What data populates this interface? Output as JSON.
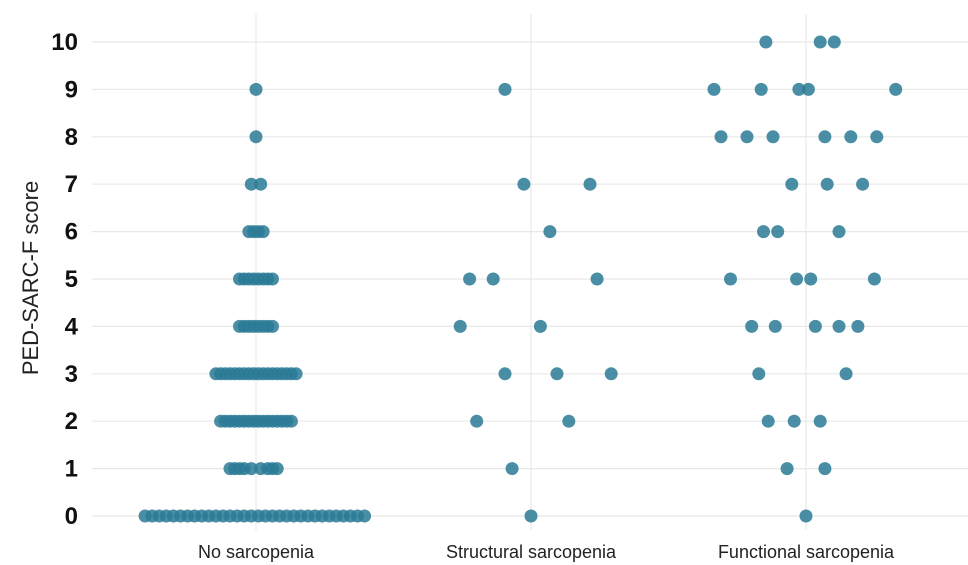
{
  "chart_data": {
    "type": "scatter",
    "subtype": "jittered-dot-plot",
    "title": "",
    "xlabel": "",
    "ylabel": "PED-SARC-F score",
    "categories": [
      "No sarcopenia",
      "Structural sarcopenia",
      "Functional sarcopenia"
    ],
    "yticks": [
      0,
      1,
      2,
      3,
      4,
      5,
      6,
      7,
      8,
      9,
      10
    ],
    "ylim": [
      0,
      10
    ],
    "grid": true,
    "legend": "none",
    "point_color": "#2a7a95",
    "series": [
      {
        "category": "No sarcopenia",
        "points": [
          {
            "jitter": 0.0,
            "y": 9
          },
          {
            "jitter": 0.0,
            "y": 8
          },
          {
            "jitter": -0.02,
            "y": 7
          },
          {
            "jitter": 0.02,
            "y": 7
          },
          {
            "jitter": -0.03,
            "y": 6
          },
          {
            "jitter": -0.01,
            "y": 6
          },
          {
            "jitter": 0.01,
            "y": 6
          },
          {
            "jitter": 0.03,
            "y": 6
          },
          {
            "jitter": -0.07,
            "y": 5
          },
          {
            "jitter": -0.05,
            "y": 5
          },
          {
            "jitter": -0.03,
            "y": 5
          },
          {
            "jitter": -0.01,
            "y": 5
          },
          {
            "jitter": 0.01,
            "y": 5
          },
          {
            "jitter": 0.03,
            "y": 5
          },
          {
            "jitter": 0.05,
            "y": 5
          },
          {
            "jitter": 0.07,
            "y": 5
          },
          {
            "jitter": -0.07,
            "y": 4
          },
          {
            "jitter": -0.05,
            "y": 4
          },
          {
            "jitter": -0.03,
            "y": 4
          },
          {
            "jitter": -0.01,
            "y": 4
          },
          {
            "jitter": 0.01,
            "y": 4
          },
          {
            "jitter": 0.03,
            "y": 4
          },
          {
            "jitter": 0.05,
            "y": 4
          },
          {
            "jitter": 0.07,
            "y": 4
          },
          {
            "jitter": -0.17,
            "y": 3
          },
          {
            "jitter": -0.15,
            "y": 3
          },
          {
            "jitter": -0.13,
            "y": 3
          },
          {
            "jitter": -0.11,
            "y": 3
          },
          {
            "jitter": -0.09,
            "y": 3
          },
          {
            "jitter": -0.07,
            "y": 3
          },
          {
            "jitter": -0.05,
            "y": 3
          },
          {
            "jitter": -0.03,
            "y": 3
          },
          {
            "jitter": -0.01,
            "y": 3
          },
          {
            "jitter": 0.01,
            "y": 3
          },
          {
            "jitter": 0.03,
            "y": 3
          },
          {
            "jitter": 0.05,
            "y": 3
          },
          {
            "jitter": 0.07,
            "y": 3
          },
          {
            "jitter": 0.09,
            "y": 3
          },
          {
            "jitter": 0.11,
            "y": 3
          },
          {
            "jitter": 0.13,
            "y": 3
          },
          {
            "jitter": 0.15,
            "y": 3
          },
          {
            "jitter": 0.17,
            "y": 3
          },
          {
            "jitter": -0.15,
            "y": 2
          },
          {
            "jitter": -0.13,
            "y": 2
          },
          {
            "jitter": -0.11,
            "y": 2
          },
          {
            "jitter": -0.09,
            "y": 2
          },
          {
            "jitter": -0.07,
            "y": 2
          },
          {
            "jitter": -0.05,
            "y": 2
          },
          {
            "jitter": -0.03,
            "y": 2
          },
          {
            "jitter": -0.01,
            "y": 2
          },
          {
            "jitter": 0.01,
            "y": 2
          },
          {
            "jitter": 0.03,
            "y": 2
          },
          {
            "jitter": 0.05,
            "y": 2
          },
          {
            "jitter": 0.07,
            "y": 2
          },
          {
            "jitter": 0.09,
            "y": 2
          },
          {
            "jitter": 0.11,
            "y": 2
          },
          {
            "jitter": 0.13,
            "y": 2
          },
          {
            "jitter": 0.15,
            "y": 2
          },
          {
            "jitter": -0.11,
            "y": 1
          },
          {
            "jitter": -0.09,
            "y": 1
          },
          {
            "jitter": -0.07,
            "y": 1
          },
          {
            "jitter": -0.05,
            "y": 1
          },
          {
            "jitter": -0.02,
            "y": 1
          },
          {
            "jitter": 0.02,
            "y": 1
          },
          {
            "jitter": 0.05,
            "y": 1
          },
          {
            "jitter": 0.07,
            "y": 1
          },
          {
            "jitter": 0.09,
            "y": 1
          },
          {
            "jitter": -0.47,
            "y": 0
          },
          {
            "jitter": -0.44,
            "y": 0
          },
          {
            "jitter": -0.41,
            "y": 0
          },
          {
            "jitter": -0.38,
            "y": 0
          },
          {
            "jitter": -0.35,
            "y": 0
          },
          {
            "jitter": -0.32,
            "y": 0
          },
          {
            "jitter": -0.29,
            "y": 0
          },
          {
            "jitter": -0.26,
            "y": 0
          },
          {
            "jitter": -0.23,
            "y": 0
          },
          {
            "jitter": -0.2,
            "y": 0
          },
          {
            "jitter": -0.17,
            "y": 0
          },
          {
            "jitter": -0.14,
            "y": 0
          },
          {
            "jitter": -0.11,
            "y": 0
          },
          {
            "jitter": -0.08,
            "y": 0
          },
          {
            "jitter": -0.05,
            "y": 0
          },
          {
            "jitter": -0.02,
            "y": 0
          },
          {
            "jitter": 0.01,
            "y": 0
          },
          {
            "jitter": 0.04,
            "y": 0
          },
          {
            "jitter": 0.07,
            "y": 0
          },
          {
            "jitter": 0.1,
            "y": 0
          },
          {
            "jitter": 0.13,
            "y": 0
          },
          {
            "jitter": 0.16,
            "y": 0
          },
          {
            "jitter": 0.19,
            "y": 0
          },
          {
            "jitter": 0.22,
            "y": 0
          },
          {
            "jitter": 0.25,
            "y": 0
          },
          {
            "jitter": 0.28,
            "y": 0
          },
          {
            "jitter": 0.31,
            "y": 0
          },
          {
            "jitter": 0.34,
            "y": 0
          },
          {
            "jitter": 0.37,
            "y": 0
          },
          {
            "jitter": 0.4,
            "y": 0
          },
          {
            "jitter": 0.43,
            "y": 0
          },
          {
            "jitter": 0.46,
            "y": 0
          }
        ]
      },
      {
        "category": "Structural sarcopenia",
        "points": [
          {
            "jitter": -0.11,
            "y": 9
          },
          {
            "jitter": -0.03,
            "y": 7
          },
          {
            "jitter": 0.25,
            "y": 7
          },
          {
            "jitter": 0.08,
            "y": 6
          },
          {
            "jitter": -0.26,
            "y": 5
          },
          {
            "jitter": -0.16,
            "y": 5
          },
          {
            "jitter": 0.28,
            "y": 5
          },
          {
            "jitter": -0.3,
            "y": 4
          },
          {
            "jitter": 0.04,
            "y": 4
          },
          {
            "jitter": -0.11,
            "y": 3
          },
          {
            "jitter": 0.11,
            "y": 3
          },
          {
            "jitter": 0.34,
            "y": 3
          },
          {
            "jitter": -0.23,
            "y": 2
          },
          {
            "jitter": 0.16,
            "y": 2
          },
          {
            "jitter": -0.08,
            "y": 1
          },
          {
            "jitter": 0.0,
            "y": 0
          }
        ]
      },
      {
        "category": "Functional sarcopenia",
        "points": [
          {
            "jitter": -0.17,
            "y": 10
          },
          {
            "jitter": 0.06,
            "y": 10
          },
          {
            "jitter": 0.12,
            "y": 10
          },
          {
            "jitter": -0.39,
            "y": 9
          },
          {
            "jitter": -0.19,
            "y": 9
          },
          {
            "jitter": -0.03,
            "y": 9
          },
          {
            "jitter": 0.01,
            "y": 9
          },
          {
            "jitter": 0.38,
            "y": 9
          },
          {
            "jitter": -0.36,
            "y": 8
          },
          {
            "jitter": -0.25,
            "y": 8
          },
          {
            "jitter": -0.14,
            "y": 8
          },
          {
            "jitter": 0.08,
            "y": 8
          },
          {
            "jitter": 0.19,
            "y": 8
          },
          {
            "jitter": 0.3,
            "y": 8
          },
          {
            "jitter": -0.06,
            "y": 7
          },
          {
            "jitter": 0.09,
            "y": 7
          },
          {
            "jitter": 0.24,
            "y": 7
          },
          {
            "jitter": -0.18,
            "y": 6
          },
          {
            "jitter": -0.12,
            "y": 6
          },
          {
            "jitter": 0.14,
            "y": 6
          },
          {
            "jitter": -0.32,
            "y": 5
          },
          {
            "jitter": -0.04,
            "y": 5
          },
          {
            "jitter": 0.02,
            "y": 5
          },
          {
            "jitter": 0.29,
            "y": 5
          },
          {
            "jitter": -0.23,
            "y": 4
          },
          {
            "jitter": -0.13,
            "y": 4
          },
          {
            "jitter": 0.04,
            "y": 4
          },
          {
            "jitter": 0.14,
            "y": 4
          },
          {
            "jitter": 0.22,
            "y": 4
          },
          {
            "jitter": -0.2,
            "y": 3
          },
          {
            "jitter": 0.17,
            "y": 3
          },
          {
            "jitter": -0.16,
            "y": 2
          },
          {
            "jitter": -0.05,
            "y": 2
          },
          {
            "jitter": 0.06,
            "y": 2
          },
          {
            "jitter": -0.08,
            "y": 1
          },
          {
            "jitter": 0.08,
            "y": 1
          },
          {
            "jitter": 0.0,
            "y": 0
          }
        ]
      }
    ]
  }
}
